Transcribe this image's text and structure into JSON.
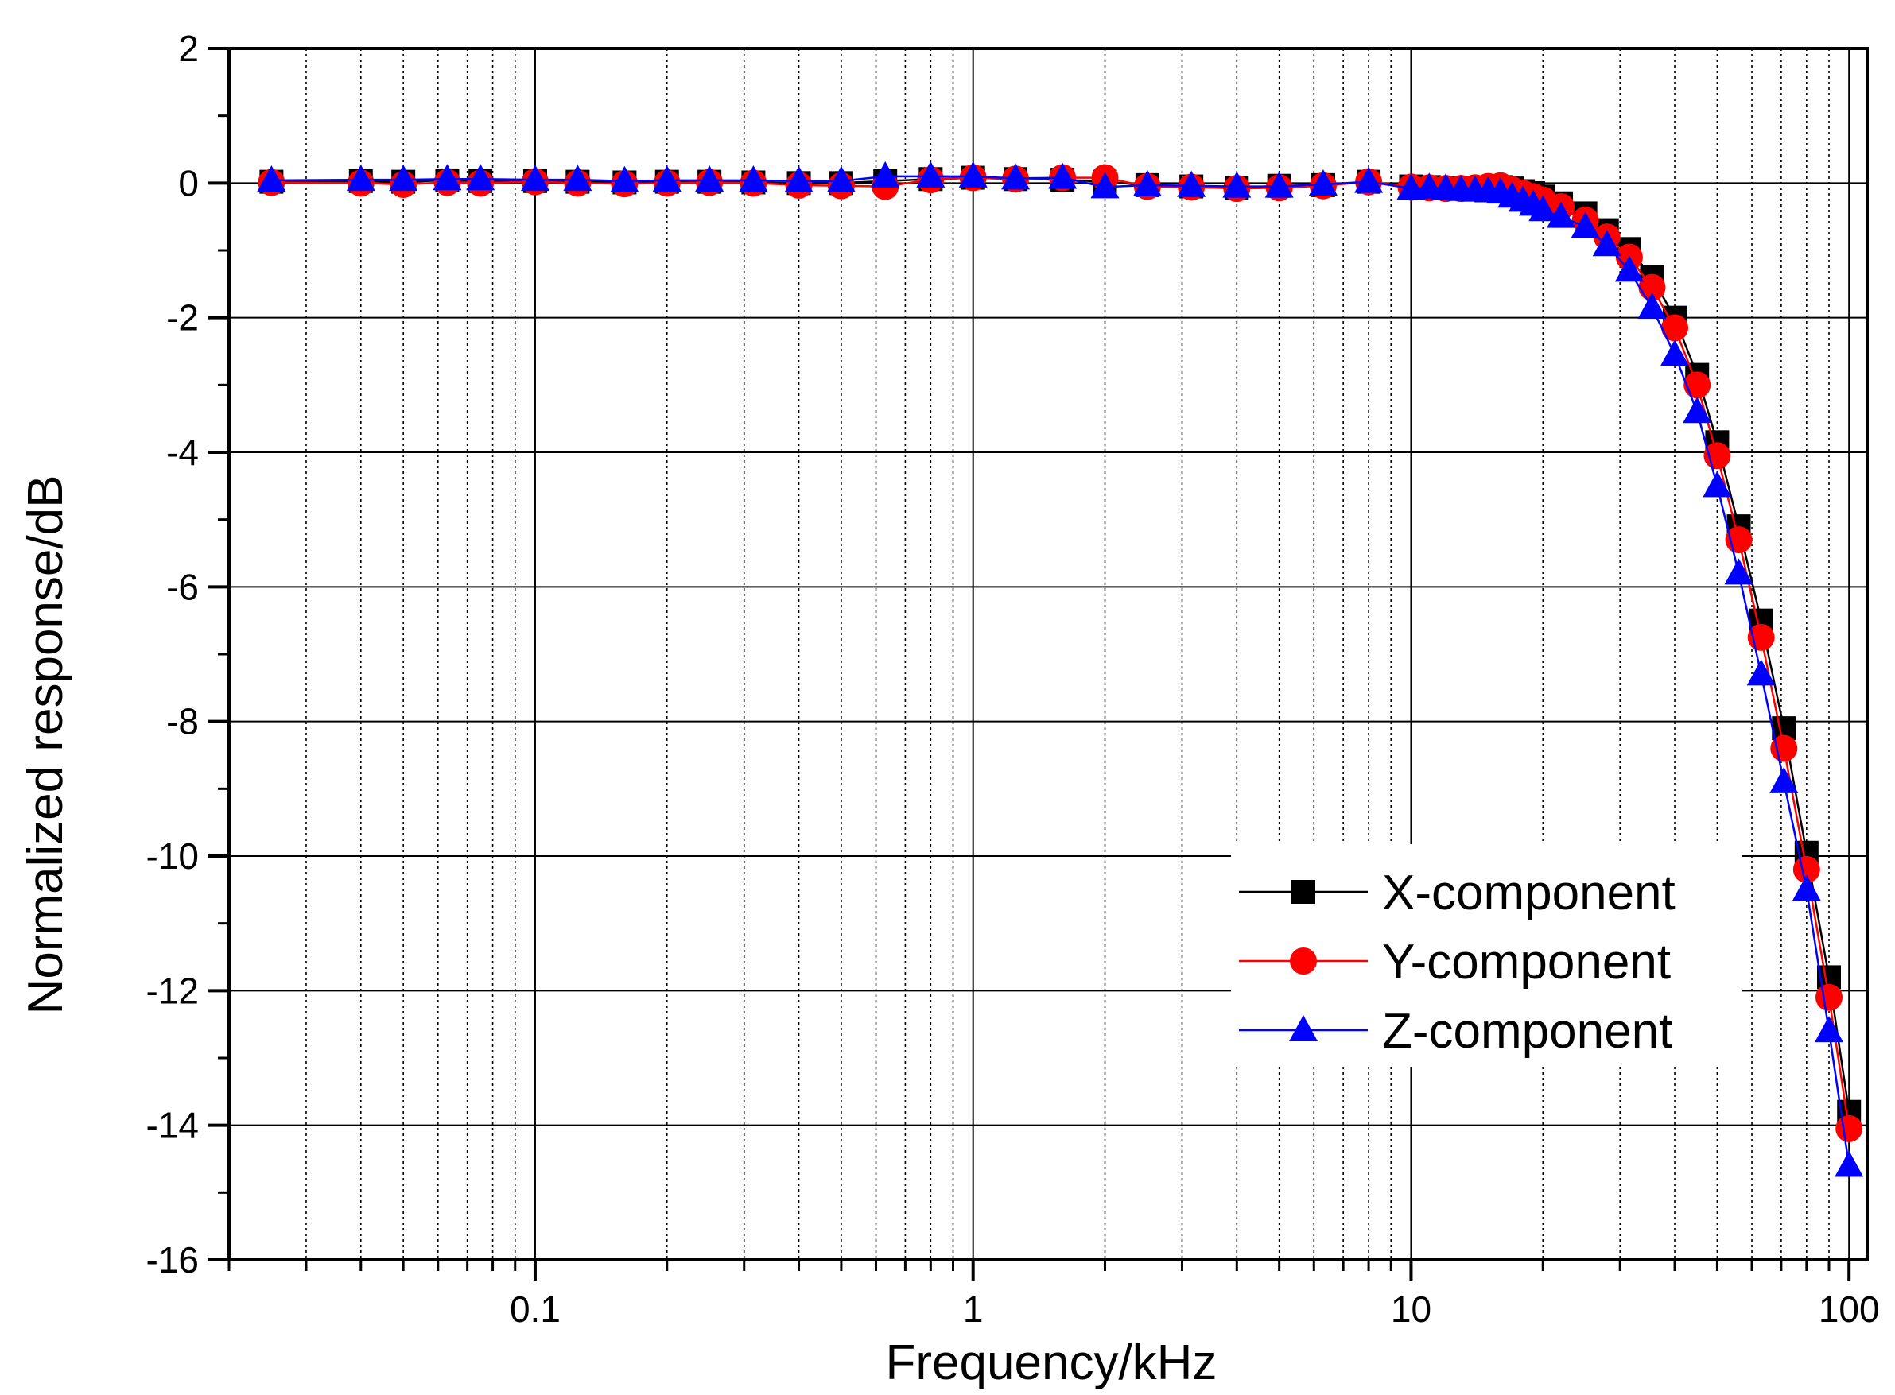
{
  "chart_data": {
    "type": "line",
    "xlabel": "Frequency/kHz",
    "ylabel": "Normalized response/dB",
    "xscale": "log",
    "xlim": [
      0.02,
      110
    ],
    "ylim": [
      -16,
      2
    ],
    "grid": true,
    "legend_position": "bottom-right",
    "x_ticks": [
      {
        "value": 0.1,
        "label": "0.1"
      },
      {
        "value": 1,
        "label": "1"
      },
      {
        "value": 10,
        "label": "10"
      },
      {
        "value": 100,
        "label": "100"
      }
    ],
    "y_ticks": [
      {
        "value": 2,
        "label": "2"
      },
      {
        "value": 0,
        "label": "0"
      },
      {
        "value": -2,
        "label": "-2"
      },
      {
        "value": -4,
        "label": "-4"
      },
      {
        "value": -6,
        "label": "-6"
      },
      {
        "value": -8,
        "label": "-8"
      },
      {
        "value": -10,
        "label": "-10"
      },
      {
        "value": -12,
        "label": "-12"
      },
      {
        "value": -14,
        "label": "-14"
      },
      {
        "value": -16,
        "label": "-16"
      }
    ],
    "x": [
      0.025,
      0.04,
      0.05,
      0.063,
      0.075,
      0.1,
      0.125,
      0.16,
      0.2,
      0.25,
      0.315,
      0.4,
      0.5,
      0.63,
      0.8,
      1,
      1.25,
      1.6,
      2,
      2.5,
      3.15,
      4,
      5,
      6.3,
      8,
      10,
      11,
      12,
      13,
      14,
      15,
      16,
      17,
      18,
      19,
      20,
      22,
      25,
      28,
      31.5,
      35.5,
      40,
      45,
      50,
      56,
      63,
      71,
      80,
      90,
      100
    ],
    "series": [
      {
        "name": "X-component",
        "color": "#000000",
        "marker": "square",
        "values": [
          0.02,
          0.03,
          0.02,
          0.04,
          0.03,
          0.03,
          0.02,
          0.01,
          0.02,
          0.02,
          0.01,
          0.0,
          0.0,
          0.03,
          0.06,
          0.08,
          0.06,
          0.05,
          0.02,
          -0.03,
          -0.05,
          -0.07,
          -0.04,
          -0.03,
          0.02,
          -0.05,
          -0.06,
          -0.07,
          -0.08,
          -0.08,
          -0.07,
          -0.06,
          -0.08,
          -0.12,
          -0.15,
          -0.2,
          -0.3,
          -0.45,
          -0.7,
          -0.98,
          -1.4,
          -2.0,
          -2.85,
          -3.85,
          -5.1,
          -6.5,
          -8.1,
          -9.95,
          -11.8,
          -13.8
        ]
      },
      {
        "name": "Y-component",
        "color": "#ff0000",
        "marker": "circle",
        "values": [
          0.01,
          0.0,
          -0.02,
          0.01,
          0.0,
          0.02,
          0.0,
          -0.01,
          0.0,
          0.01,
          0.0,
          -0.03,
          -0.04,
          -0.05,
          0.05,
          0.08,
          0.06,
          0.08,
          0.08,
          -0.05,
          -0.06,
          -0.08,
          -0.07,
          -0.04,
          0.02,
          -0.06,
          -0.07,
          -0.08,
          -0.08,
          -0.07,
          -0.05,
          -0.04,
          -0.1,
          -0.15,
          -0.2,
          -0.25,
          -0.35,
          -0.55,
          -0.8,
          -1.1,
          -1.55,
          -2.15,
          -3.0,
          -4.05,
          -5.3,
          -6.75,
          -8.4,
          -10.2,
          -12.1,
          -14.05
        ]
      },
      {
        "name": "Z-component",
        "color": "#0000ff",
        "marker": "triangle",
        "values": [
          0.04,
          0.05,
          0.05,
          0.06,
          0.06,
          0.05,
          0.05,
          0.03,
          0.04,
          0.04,
          0.04,
          0.03,
          0.03,
          0.1,
          0.1,
          0.1,
          0.07,
          0.08,
          -0.06,
          -0.03,
          -0.04,
          -0.05,
          -0.05,
          -0.02,
          0.02,
          -0.08,
          -0.07,
          -0.08,
          -0.1,
          -0.11,
          -0.12,
          -0.14,
          -0.2,
          -0.26,
          -0.32,
          -0.4,
          -0.5,
          -0.65,
          -0.92,
          -1.3,
          -1.85,
          -2.55,
          -3.4,
          -4.5,
          -5.8,
          -7.3,
          -8.9,
          -10.5,
          -12.6,
          -14.6
        ]
      }
    ]
  }
}
